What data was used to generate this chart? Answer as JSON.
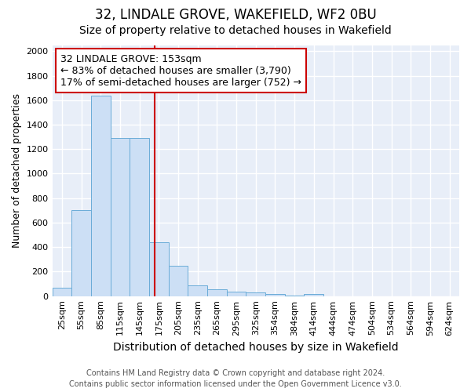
{
  "title1": "32, LINDALE GROVE, WAKEFIELD, WF2 0BU",
  "title2": "Size of property relative to detached houses in Wakefield",
  "xlabel": "Distribution of detached houses by size in Wakefield",
  "ylabel": "Number of detached properties",
  "categories": [
    "25sqm",
    "55sqm",
    "85sqm",
    "115sqm",
    "145sqm",
    "175sqm",
    "205sqm",
    "235sqm",
    "265sqm",
    "295sqm",
    "325sqm",
    "354sqm",
    "384sqm",
    "414sqm",
    "444sqm",
    "474sqm",
    "504sqm",
    "534sqm",
    "564sqm",
    "594sqm",
    "624sqm"
  ],
  "values": [
    70,
    700,
    1640,
    1290,
    1290,
    440,
    250,
    90,
    55,
    35,
    30,
    20,
    5,
    20,
    0,
    0,
    0,
    0,
    0,
    0,
    0
  ],
  "bar_color": "#ccdff5",
  "bar_edge_color": "#6aacd8",
  "background_color": "#e8eef8",
  "grid_color": "#ffffff",
  "vline_color": "#cc0000",
  "annotation_title": "32 LINDALE GROVE: 153sqm",
  "annotation_line1": "← 83% of detached houses are smaller (3,790)",
  "annotation_line2": "17% of semi-detached houses are larger (752) →",
  "annotation_box_facecolor": "#ffffff",
  "annotation_box_edgecolor": "#cc0000",
  "ylim": [
    0,
    2050
  ],
  "yticks": [
    0,
    200,
    400,
    600,
    800,
    1000,
    1200,
    1400,
    1600,
    1800,
    2000
  ],
  "footer1": "Contains HM Land Registry data © Crown copyright and database right 2024.",
  "footer2": "Contains public sector information licensed under the Open Government Licence v3.0.",
  "title1_fontsize": 12,
  "title2_fontsize": 10,
  "xlabel_fontsize": 10,
  "ylabel_fontsize": 9,
  "tick_fontsize": 8,
  "footer_fontsize": 7,
  "annotation_fontsize": 9
}
